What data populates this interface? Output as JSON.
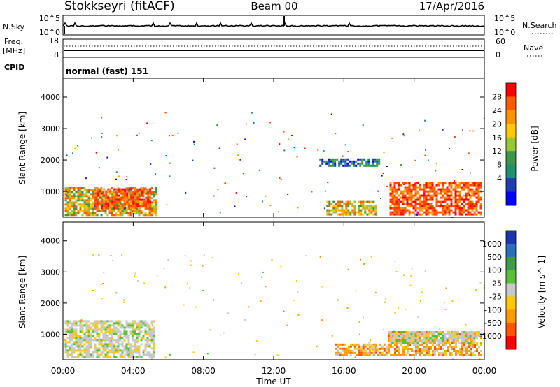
{
  "header": {
    "station": "Stokkseyri (fitACF)",
    "beam": "Beam 00",
    "date": "17/Apr/2016"
  },
  "nsky_panel": {
    "left_label": "N.Sky",
    "left_top_tick": "10^5",
    "left_bottom_tick": "10^0",
    "right_label": "N.Search",
    "right_top_tick": "10^5",
    "right_bottom_tick": "10^0"
  },
  "freq_panel": {
    "label_line1": "Freq.",
    "label_line2": "[MHz]",
    "left_top_tick": "18",
    "left_bottom_tick": "8",
    "right_label": "Nave",
    "right_top_tick": "60",
    "right_bottom_tick": "0"
  },
  "cpid_panel": {
    "label": "CPID",
    "mode": "normal (fast) 151"
  },
  "chart_data": [
    {
      "type": "heatmap",
      "panel": "power",
      "ylabel": "Slant Range [km]",
      "ylim": [
        180,
        4600
      ],
      "yticks": [
        1000,
        2000,
        3000,
        4000
      ],
      "colorbar_label": "Power [dB]",
      "colorbar_ticks": [
        "28",
        "24",
        "20",
        "16",
        "12",
        "8",
        "4"
      ],
      "colorbar_colors": [
        "#ff0000",
        "#ff5a00",
        "#ff9400",
        "#ffc800",
        "#99c732",
        "#3c9645",
        "#208f6e",
        "#1e3cb4",
        "#0000ff"
      ],
      "regions": [
        {
          "time": [
            0.1,
            5.3
          ],
          "range": [
            220,
            1150
          ],
          "level": "mid-high"
        },
        {
          "time": [
            1.8,
            5.0
          ],
          "range": [
            500,
            1100
          ],
          "level": "high"
        },
        {
          "time": [
            15.0,
            17.8
          ],
          "range": [
            300,
            700
          ],
          "level": "mid"
        },
        {
          "time": [
            18.6,
            23.8
          ],
          "range": [
            250,
            1300
          ],
          "level": "high"
        },
        {
          "time": [
            14.6,
            18.0
          ],
          "range": [
            1800,
            2050
          ],
          "level": "low"
        }
      ]
    },
    {
      "type": "heatmap",
      "panel": "velocity",
      "ylabel": "Slant Range [km]",
      "ylim": [
        180,
        4600
      ],
      "yticks": [
        1000,
        2000,
        3000,
        4000
      ],
      "colorbar_label": "Velocity [m s^-1]",
      "colorbar_ticks": [
        "1000",
        "500",
        "100",
        "25",
        "-25",
        "-100",
        "-500",
        "-1000"
      ],
      "colorbar_colors": [
        "#1a35b0",
        "#2a6fb7",
        "#3c9a48",
        "#58c038",
        "#c8c8c8",
        "#ffc800",
        "#ff9a00",
        "#ff5400",
        "#ff0000"
      ],
      "regions": [
        {
          "time": [
            0.1,
            5.2
          ],
          "range": [
            250,
            1450
          ],
          "level": "ground"
        },
        {
          "time": [
            15.5,
            18.5
          ],
          "range": [
            350,
            700
          ],
          "level": "negative"
        },
        {
          "time": [
            18.5,
            23.8
          ],
          "range": [
            300,
            1100
          ],
          "level": "negative"
        },
        {
          "time": [
            18.6,
            23.5
          ],
          "range": [
            700,
            1100
          ],
          "level": "ground"
        }
      ]
    }
  ],
  "time_axis": {
    "label": "Time UT",
    "ticks": [
      "00:00",
      "04:00",
      "08:00",
      "12:00",
      "16:00",
      "20:00",
      "00:00"
    ]
  }
}
